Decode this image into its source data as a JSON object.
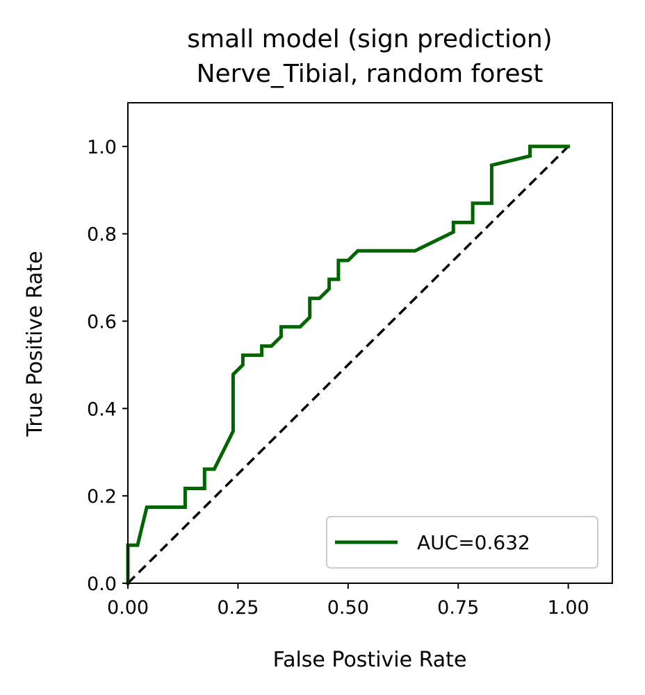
{
  "chart_data": {
    "type": "line",
    "title": "small model (sign prediction)",
    "subtitle": "Nerve_Tibial, random forest",
    "xlabel": "False Postivie Rate",
    "ylabel": "True Positive Rate",
    "xlim": [
      0,
      1.1
    ],
    "ylim": [
      0,
      1.1
    ],
    "xticks": [
      0,
      0.25,
      0.5,
      0.75,
      1.0
    ],
    "xtick_labels": [
      "0.00",
      "0.25",
      "0.50",
      "0.75",
      "1.00"
    ],
    "yticks": [
      0,
      0.2,
      0.4,
      0.6,
      0.8,
      1.0
    ],
    "ytick_labels": [
      "0.0",
      "0.2",
      "0.4",
      "0.6",
      "0.8",
      "1.0"
    ],
    "grid": false,
    "legend_position": "lower-right",
    "series": [
      {
        "name": "AUC=0.632",
        "color": "#006400",
        "x": [
          0.0,
          0.0,
          0.022,
          0.043,
          0.13,
          0.13,
          0.174,
          0.174,
          0.196,
          0.239,
          0.239,
          0.261,
          0.261,
          0.304,
          0.304,
          0.326,
          0.348,
          0.348,
          0.391,
          0.413,
          0.413,
          0.435,
          0.457,
          0.457,
          0.478,
          0.478,
          0.5,
          0.522,
          0.652,
          0.739,
          0.739,
          0.783,
          0.783,
          0.826,
          0.826,
          0.913,
          0.913,
          1.0
        ],
        "y": [
          0.0,
          0.087,
          0.087,
          0.174,
          0.174,
          0.217,
          0.217,
          0.261,
          0.261,
          0.348,
          0.478,
          0.5,
          0.522,
          0.522,
          0.543,
          0.543,
          0.565,
          0.587,
          0.587,
          0.609,
          0.652,
          0.652,
          0.674,
          0.696,
          0.696,
          0.739,
          0.739,
          0.761,
          0.761,
          0.804,
          0.826,
          0.826,
          0.87,
          0.87,
          0.957,
          0.978,
          1.0,
          1.0
        ]
      }
    ],
    "reference_line": {
      "x": [
        0,
        1
      ],
      "y": [
        0,
        1
      ],
      "style": "dashed",
      "color": "#000000"
    }
  }
}
